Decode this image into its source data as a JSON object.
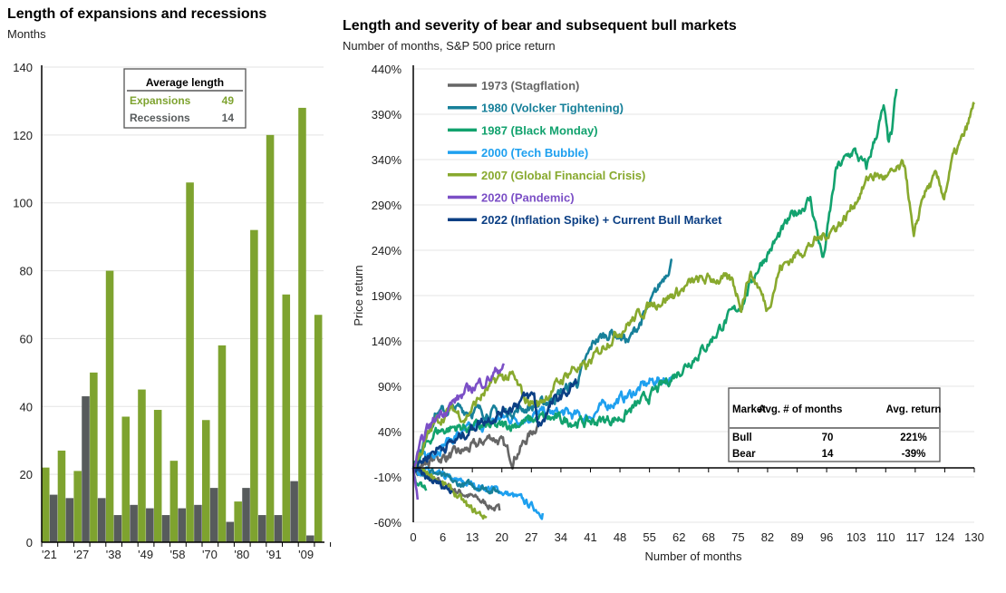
{
  "left": {
    "title": "Length of expansions and recessions",
    "subtitle": "Months"
  },
  "right": {
    "title": "Length and severity of bear and subsequent bull markets",
    "subtitle": "Number of months, S&P 500 price return"
  },
  "chart_data": [
    {
      "type": "bar",
      "title": "Length of expansions and recessions",
      "ylabel": "Months",
      "ylim": [
        0,
        140
      ],
      "yticks": [
        "0",
        "20",
        "40",
        "60",
        "80",
        "100",
        "120",
        "140"
      ],
      "xtick_labels": [
        "'21",
        "'27",
        "'38",
        "'49",
        "'58",
        "'70",
        "'80",
        "'91",
        "'09"
      ],
      "grid": true,
      "colors": {
        "expansion": "#7ea32f",
        "recession": "#575b5c"
      },
      "bars": [
        {
          "kind": "expansion",
          "value": 22
        },
        {
          "kind": "recession",
          "value": 14
        },
        {
          "kind": "expansion",
          "value": 27
        },
        {
          "kind": "recession",
          "value": 13
        },
        {
          "kind": "expansion",
          "value": 21
        },
        {
          "kind": "recession",
          "value": 43
        },
        {
          "kind": "expansion",
          "value": 50
        },
        {
          "kind": "recession",
          "value": 13
        },
        {
          "kind": "expansion",
          "value": 80
        },
        {
          "kind": "recession",
          "value": 8
        },
        {
          "kind": "expansion",
          "value": 37
        },
        {
          "kind": "recession",
          "value": 11
        },
        {
          "kind": "expansion",
          "value": 45
        },
        {
          "kind": "recession",
          "value": 10
        },
        {
          "kind": "expansion",
          "value": 39
        },
        {
          "kind": "recession",
          "value": 8
        },
        {
          "kind": "expansion",
          "value": 24
        },
        {
          "kind": "recession",
          "value": 10
        },
        {
          "kind": "expansion",
          "value": 106
        },
        {
          "kind": "recession",
          "value": 11
        },
        {
          "kind": "expansion",
          "value": 36
        },
        {
          "kind": "recession",
          "value": 16
        },
        {
          "kind": "expansion",
          "value": 58
        },
        {
          "kind": "recession",
          "value": 6
        },
        {
          "kind": "expansion",
          "value": 12
        },
        {
          "kind": "recession",
          "value": 16
        },
        {
          "kind": "expansion",
          "value": 92
        },
        {
          "kind": "recession",
          "value": 8
        },
        {
          "kind": "expansion",
          "value": 120
        },
        {
          "kind": "recession",
          "value": 8
        },
        {
          "kind": "expansion",
          "value": 73
        },
        {
          "kind": "recession",
          "value": 18
        },
        {
          "kind": "expansion",
          "value": 128
        },
        {
          "kind": "recession",
          "value": 2
        },
        {
          "kind": "expansion",
          "value": 67
        }
      ],
      "legend_box": {
        "title": "Average length",
        "rows": [
          {
            "label": "Expansions",
            "value": "49",
            "color": "#7ea32f"
          },
          {
            "label": "Recessions",
            "value": "14",
            "color": "#575b5c"
          }
        ]
      }
    },
    {
      "type": "line",
      "title": "Length and severity of bear and subsequent bull markets",
      "subtitle": "Number of months, S&P 500 price return",
      "xlabel": "Number of months",
      "ylabel": "Price return",
      "xlim": [
        0,
        130
      ],
      "ylim": [
        -60,
        440
      ],
      "xticks": [
        "0",
        "6",
        "13",
        "20",
        "27",
        "34",
        "41",
        "48",
        "55",
        "62",
        "68",
        "75",
        "82",
        "89",
        "96",
        "103",
        "110",
        "117",
        "124",
        "130"
      ],
      "yticks": [
        "-60%",
        "-10%",
        "40%",
        "90%",
        "140%",
        "190%",
        "240%",
        "290%",
        "340%",
        "390%",
        "440%"
      ],
      "grid": true,
      "legend_position": "top-left",
      "series": [
        {
          "name": "1973 (Stagflation)",
          "color": "#666666",
          "bear": [
            [
              0,
              0
            ],
            [
              5,
              -15
            ],
            [
              10,
              -25
            ],
            [
              15,
              -35
            ],
            [
              20,
              -47
            ]
          ],
          "bull": [
            [
              0,
              0
            ],
            [
              5,
              10
            ],
            [
              10,
              15
            ],
            [
              15,
              25
            ],
            [
              18,
              35
            ],
            [
              20,
              30
            ],
            [
              23,
              10
            ],
            [
              26,
              30
            ],
            [
              29,
              50
            ]
          ]
        },
        {
          "name": "1980 (Volcker Tightening)",
          "color": "#17809a",
          "bear": [
            [
              0,
              0
            ],
            [
              5,
              -5
            ],
            [
              10,
              -18
            ],
            [
              15,
              -20
            ],
            [
              20,
              -26
            ]
          ],
          "bull": [
            [
              0,
              0
            ],
            [
              5,
              60
            ],
            [
              10,
              65
            ],
            [
              20,
              60
            ],
            [
              30,
              70
            ],
            [
              38,
              95
            ],
            [
              42,
              140
            ],
            [
              46,
              150
            ],
            [
              50,
              140
            ],
            [
              55,
              180
            ],
            [
              57,
              200
            ],
            [
              60,
              230
            ]
          ]
        },
        {
          "name": "1987 (Black Monday)",
          "color": "#12a26e",
          "bear": [
            [
              0,
              0
            ],
            [
              1,
              -20
            ],
            [
              3,
              -25
            ]
          ],
          "bull": [
            [
              0,
              0
            ],
            [
              5,
              40
            ],
            [
              10,
              45
            ],
            [
              20,
              45
            ],
            [
              30,
              55
            ],
            [
              40,
              50
            ],
            [
              48,
              55
            ],
            [
              55,
              80
            ],
            [
              60,
              100
            ],
            [
              68,
              135
            ],
            [
              72,
              160
            ],
            [
              76,
              180
            ],
            [
              80,
              222
            ],
            [
              84,
              250
            ],
            [
              88,
              279
            ],
            [
              92,
              296
            ],
            [
              95,
              229
            ],
            [
              98,
              329
            ],
            [
              102,
              350
            ],
            [
              105,
              330
            ],
            [
              109,
              396
            ],
            [
              110,
              360
            ],
            [
              111,
              370
            ],
            [
              112,
              418
            ]
          ]
        },
        {
          "name": "2000 (Tech Bubble)",
          "color": "#1ea0ef",
          "bear": [
            [
              0,
              0
            ],
            [
              10,
              -15
            ],
            [
              20,
              -25
            ],
            [
              25,
              -35
            ],
            [
              30,
              -50
            ]
          ],
          "bull": [
            [
              0,
              0
            ],
            [
              5,
              20
            ],
            [
              10,
              35
            ],
            [
              15,
              45
            ],
            [
              20,
              55
            ],
            [
              25,
              55
            ],
            [
              30,
              60
            ],
            [
              35,
              60
            ],
            [
              40,
              55
            ],
            [
              45,
              70
            ],
            [
              50,
              80
            ],
            [
              55,
              95
            ],
            [
              60,
              100
            ]
          ]
        },
        {
          "name": "2007 (Global Financial Crisis)",
          "color": "#88a92e",
          "bear": [
            [
              0,
              0
            ],
            [
              5,
              -10
            ],
            [
              10,
              -30
            ],
            [
              13,
              -45
            ],
            [
              17,
              -55
            ]
          ],
          "bull": [
            [
              0,
              0
            ],
            [
              5,
              50
            ],
            [
              9,
              65
            ],
            [
              12,
              55
            ],
            [
              15,
              75
            ],
            [
              20,
              100
            ],
            [
              23,
              100
            ],
            [
              26,
              75
            ],
            [
              29,
              70
            ],
            [
              33,
              90
            ],
            [
              37,
              110
            ],
            [
              40,
              110
            ],
            [
              45,
              140
            ],
            [
              50,
              160
            ],
            [
              55,
              180
            ],
            [
              60,
              190
            ],
            [
              65,
              205
            ],
            [
              70,
              209
            ],
            [
              74,
              205
            ],
            [
              76,
              180
            ],
            [
              78,
              215
            ],
            [
              80,
              200
            ],
            [
              82,
              175
            ],
            [
              85,
              220
            ],
            [
              90,
              240
            ],
            [
              95,
              255
            ],
            [
              100,
              275
            ],
            [
              106,
              323
            ],
            [
              110,
              320
            ],
            [
              114,
              333
            ],
            [
              116,
              249
            ],
            [
              118,
              300
            ],
            [
              121,
              320
            ],
            [
              123,
              300
            ],
            [
              125,
              340
            ],
            [
              128,
              370
            ],
            [
              130,
              401
            ]
          ]
        },
        {
          "name": "2020 (Pandemic)",
          "color": "#7b4fc6",
          "bear": [
            [
              0,
              0
            ],
            [
              1,
              -35
            ]
          ],
          "bull": [
            [
              0,
              0
            ],
            [
              3,
              40
            ],
            [
              6,
              60
            ],
            [
              10,
              75
            ],
            [
              14,
              90
            ],
            [
              18,
              100
            ],
            [
              21,
              115
            ]
          ]
        },
        {
          "name": "2022 (Inflation Spike) + Current Bull Market",
          "color": "#0b3f84",
          "bear": [
            [
              0,
              0
            ],
            [
              3,
              -12
            ],
            [
              6,
              -18
            ],
            [
              9,
              -25
            ]
          ],
          "bull": [
            [
              0,
              0
            ],
            [
              5,
              20
            ],
            [
              10,
              30
            ],
            [
              15,
              50
            ],
            [
              20,
              60
            ],
            [
              25,
              75
            ],
            [
              28,
              80
            ],
            [
              29,
              45
            ],
            [
              32,
              70
            ],
            [
              36,
              85
            ],
            [
              38,
              95
            ]
          ]
        }
      ],
      "summary_table": {
        "headers": [
          "Market",
          "Avg. # of months",
          "Avg. return"
        ],
        "rows": [
          [
            "Bull",
            "70",
            "221%"
          ],
          [
            "Bear",
            "14",
            "-39%"
          ]
        ]
      }
    }
  ]
}
